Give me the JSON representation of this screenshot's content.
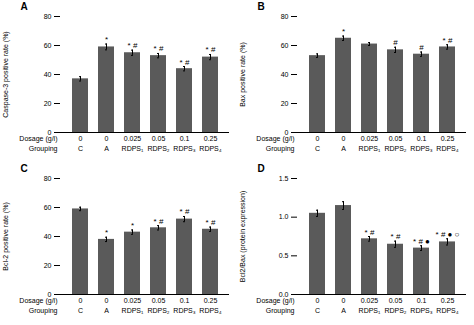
{
  "chart_data": [
    {
      "type": "bar",
      "title": "A",
      "ylabel": "Caspase-3 positive rate (%)",
      "categories": [
        "C",
        "A",
        "RDPS₁",
        "RDPS₂",
        "RDPS₃",
        "RDPS₄"
      ],
      "category_label": "Grouping",
      "dosage_labels": [
        "0",
        "0",
        "0.025",
        "0.05",
        "0.1",
        "0.25"
      ],
      "dosage_label": "Dosage (g/l)",
      "values": [
        37,
        59,
        55,
        53,
        44,
        52
      ],
      "errors": [
        1.5,
        2.0,
        1.8,
        1.5,
        1.5,
        1.8
      ],
      "significance_labels": [
        null,
        "*",
        "* #",
        "* #",
        "* #",
        "* #"
      ],
      "color": "#5a5a5a",
      "ylim": [
        0,
        80
      ],
      "yticks": [
        0,
        20,
        40,
        60,
        80
      ]
    },
    {
      "type": "bar",
      "title": "B",
      "ylabel": "Bax positive rate (%)",
      "categories": [
        "C",
        "A",
        "RDPS₁",
        "RDPS₂",
        "RDPS₃",
        "RDPS₄"
      ],
      "category_label": "Grouping",
      "dosage_labels": [
        "0",
        "0",
        "0.025",
        "0.05",
        "0.1",
        "0.25"
      ],
      "dosage_label": "Dosage (g/l)",
      "values": [
        53,
        65,
        61,
        57,
        54,
        59
      ],
      "errors": [
        1.2,
        1.5,
        1.0,
        1.8,
        1.5,
        1.5
      ],
      "significance_labels": [
        null,
        "*",
        null,
        "#",
        "#",
        "* #"
      ],
      "color": "#5a5a5a",
      "ylim": [
        0,
        80
      ],
      "yticks": [
        0,
        20,
        40,
        60,
        80
      ]
    },
    {
      "type": "bar",
      "title": "C",
      "ylabel": "Bcl-2 positive rate (%)",
      "categories": [
        "C",
        "A",
        "RDPS₁",
        "RDPS₂",
        "RDPS₃",
        "RDPS₄"
      ],
      "category_label": "Grouping",
      "dosage_labels": [
        "0",
        "0",
        "0.025",
        "0.05",
        "0.1",
        "0.25"
      ],
      "dosage_label": "Dosage (g/l)",
      "values": [
        59,
        38,
        43,
        46,
        52,
        45
      ],
      "errors": [
        1.2,
        1.5,
        1.5,
        1.5,
        1.8,
        1.5
      ],
      "significance_labels": [
        null,
        "*",
        "*",
        "* #",
        "* #",
        "* #"
      ],
      "color": "#5a5a5a",
      "ylim": [
        0,
        80
      ],
      "yticks": [
        0,
        20,
        40,
        60,
        80
      ]
    },
    {
      "type": "bar",
      "title": "D",
      "ylabel": "Bcl2/Bax (protein expression)",
      "categories": [
        "C",
        "A",
        "RDPS₁",
        "RDPS₂",
        "RDPS₃",
        "RDPS₄"
      ],
      "category_label": "Grouping",
      "dosage_labels": [
        "0",
        "0",
        "0.025",
        "0.05",
        "0.1",
        "0.25"
      ],
      "dosage_label": "Dosage (g/l)",
      "values": [
        1.05,
        1.15,
        0.72,
        0.65,
        0.6,
        0.68
      ],
      "errors": [
        0.04,
        0.05,
        0.03,
        0.04,
        0.03,
        0.04
      ],
      "significance_labels": [
        null,
        null,
        "* #",
        "* #",
        "* # ●",
        "* # ● ○"
      ],
      "color": "#5a5a5a",
      "ylim": [
        0,
        1.5
      ],
      "yticks": [
        {
          "value": 0,
          "label": "0.0"
        },
        0.5,
        {
          "value": 1,
          "label": "1.0"
        },
        1.5
      ]
    }
  ]
}
